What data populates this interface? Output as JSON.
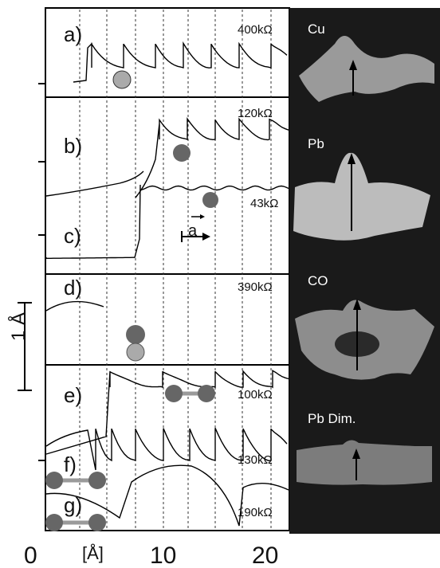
{
  "panels": [
    {
      "letter": "a)",
      "resistance": "400kΩ"
    },
    {
      "letter": "b)",
      "resistance": "120kΩ"
    },
    {
      "letter": "c)",
      "resistance": "43kΩ",
      "vector_label": "a"
    },
    {
      "letter": "d)",
      "resistance": "390kΩ"
    },
    {
      "letter": "e)",
      "resistance": "100kΩ"
    },
    {
      "letter": "f)",
      "resistance": "130kΩ"
    },
    {
      "letter": "g)",
      "resistance": "190kΩ"
    }
  ],
  "scale_bar_label": "1 Å",
  "x_axis": {
    "ticks": [
      "0",
      "10",
      "20"
    ],
    "unit": "[Å]"
  },
  "right_images": [
    {
      "label": "Cu",
      "shade": "#9a9a9a"
    },
    {
      "label": "Pb",
      "shade": "#bcbcbc"
    },
    {
      "label": "CO",
      "shade": "#8d8d8d"
    },
    {
      "label": "Pb Dim.",
      "shade": "#7c7c7c"
    }
  ],
  "colors": {
    "ball": "#666666",
    "ball_light": "#aaaaaa",
    "dimer_bond": "#9a9a9a",
    "dark_panel": "#1a1a1a"
  }
}
